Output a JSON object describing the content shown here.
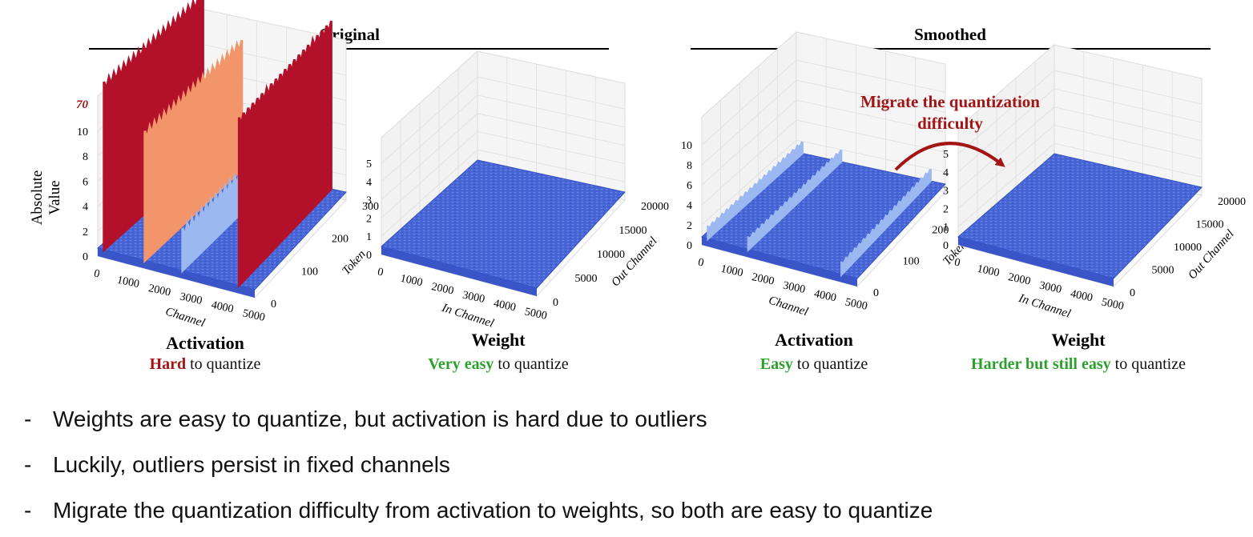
{
  "figure": {
    "groups": [
      {
        "heading": "Original"
      },
      {
        "heading": "Smoothed"
      }
    ],
    "annotation": {
      "line1": "Migrate the quantization",
      "line2": "difficulty"
    }
  },
  "chart_data": [
    {
      "type": "surface3d",
      "panel": "original-activation",
      "title": "Activation",
      "caption": {
        "emph": "Hard",
        "rest": " to quantize",
        "emph_color": "#a31515"
      },
      "axis_left_label": [
        "Absolute",
        "Value"
      ],
      "z_ticks": [
        "0",
        "2",
        "4",
        "6",
        "8",
        "10"
      ],
      "z_break_label": "70",
      "x_label": "Channel",
      "x_ticks": [
        "0",
        "1000",
        "2000",
        "3000",
        "4000",
        "5000"
      ],
      "y_label": "Token",
      "y_ticks": [
        "0",
        "100",
        "200",
        "300"
      ],
      "outlier_channels": [
        {
          "channel": 200,
          "value": 70,
          "color": "#b3102a"
        },
        {
          "channel": 1500,
          "value": 10,
          "color": "#f3956b"
        },
        {
          "channel": 2700,
          "value": 3,
          "color": "#9bb8f0"
        },
        {
          "channel": 4500,
          "value": 70,
          "color": "#b3102a"
        }
      ],
      "base_level": 0.3
    },
    {
      "type": "surface3d",
      "panel": "original-weight",
      "title": "Weight",
      "caption": {
        "emph": "Very easy",
        "rest": " to quantize",
        "emph_color": "#2ca02c"
      },
      "z_ticks": [
        "0",
        "1",
        "2",
        "3",
        "4",
        "5"
      ],
      "x_label": "In Channel",
      "x_ticks": [
        "0",
        "1000",
        "2000",
        "3000",
        "4000",
        "5000"
      ],
      "y_label": "Out Channel",
      "y_ticks": [
        "0",
        "5000",
        "10000",
        "15000",
        "20000"
      ],
      "base_level": 0.3
    },
    {
      "type": "surface3d",
      "panel": "smoothed-activation",
      "title": "Activation",
      "caption": {
        "emph": "Easy",
        "rest": " to quantize",
        "emph_color": "#2ca02c"
      },
      "z_ticks": [
        "0",
        "2",
        "4",
        "6",
        "8",
        "10"
      ],
      "x_label": "Channel",
      "x_ticks": [
        "0",
        "1000",
        "2000",
        "3000",
        "4000",
        "5000"
      ],
      "y_label": "Token",
      "y_ticks": [
        "0",
        "100",
        "200",
        "300"
      ],
      "outlier_channels": [
        {
          "channel": 200,
          "value": 1,
          "color": "#9bb8f0"
        },
        {
          "channel": 1500,
          "value": 1,
          "color": "#9bb8f0"
        },
        {
          "channel": 4500,
          "value": 1,
          "color": "#9bb8f0"
        }
      ],
      "base_level": 0.3
    },
    {
      "type": "surface3d",
      "panel": "smoothed-weight",
      "title": "Weight",
      "caption": {
        "emph": "Harder but still easy",
        "rest": " to quantize",
        "emph_color": "#2ca02c"
      },
      "z_ticks": [
        "0",
        "1",
        "2",
        "3",
        "4",
        "5"
      ],
      "x_label": "In Channel",
      "x_ticks": [
        "0",
        "1000",
        "2000",
        "3000",
        "4000",
        "5000"
      ],
      "y_label": "Out Channel",
      "y_ticks": [
        "0",
        "5000",
        "10000",
        "15000",
        "20000"
      ],
      "base_level": 0.3
    }
  ],
  "bullets": [
    {
      "dash": "-",
      "text": "Weights are easy to quantize, but activation is hard due to outliers"
    },
    {
      "dash": "-",
      "text": "Luckily, outliers persist in fixed channels"
    },
    {
      "dash": "-",
      "text": "Migrate the quantization difficulty from activation to weights, so both are easy to quantize"
    }
  ]
}
